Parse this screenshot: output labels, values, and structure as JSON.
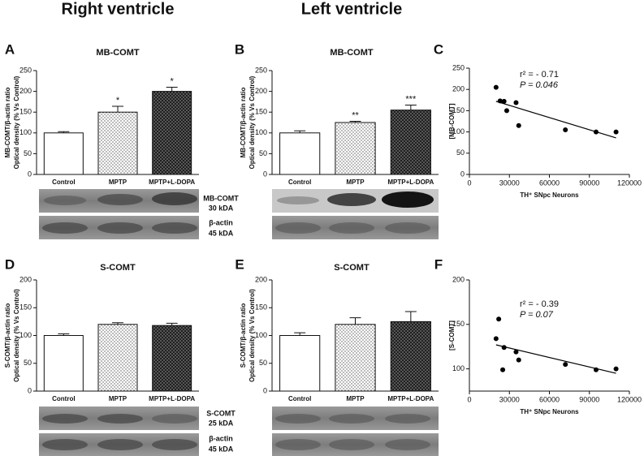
{
  "headers": [
    "Right ventricle",
    "Left ventricle"
  ],
  "blot_labels": {
    "top": [
      "MB-COMT",
      "30 kDA",
      "β-actin",
      "45 kDA"
    ],
    "bottom": [
      "S-COMT",
      "25 kDA",
      "β-actin",
      "45 kDA"
    ]
  },
  "chart_data": [
    {
      "type": "bar",
      "panel": "A",
      "title": "MB-COMT",
      "ylabel": [
        "MB-COMT/β-actin ratio",
        "Optical density (% Vs Control)"
      ],
      "categories": [
        "Control",
        "MPTP",
        "MPTP+L-DOPA"
      ],
      "values": [
        100,
        150,
        200
      ],
      "errors": [
        3,
        14,
        10
      ],
      "annotations": [
        null,
        "*",
        "*"
      ],
      "fills": [
        "white",
        "dots",
        "hatch"
      ],
      "ylim": [
        0,
        250
      ],
      "yticks": [
        0,
        50,
        100,
        150,
        200,
        250
      ]
    },
    {
      "type": "bar",
      "panel": "B",
      "title": "MB-COMT",
      "ylabel": [
        "MB-COMT/β-actin ratio",
        "Optical density (% Vs Control)"
      ],
      "categories": [
        "Control",
        "MPTP",
        "MPTP+L-DOPA"
      ],
      "values": [
        100,
        125,
        155
      ],
      "errors": [
        5,
        3,
        12
      ],
      "annotations": [
        null,
        "**",
        "***"
      ],
      "fills": [
        "white",
        "dots",
        "hatch"
      ],
      "ylim": [
        0,
        250
      ],
      "yticks": [
        0,
        50,
        100,
        150,
        200,
        250
      ]
    },
    {
      "type": "scatter",
      "panel": "C",
      "ylabel": [
        "[MB-COMT]"
      ],
      "xlabel": "TH⁺ SNpc Neurons",
      "annotations": [
        "r² = - 0.71",
        "P = 0.046"
      ],
      "x": [
        20000,
        23000,
        26000,
        28000,
        35000,
        37000,
        72000,
        95000,
        110000
      ],
      "values": [
        205,
        173,
        172,
        150,
        169,
        115,
        105,
        100,
        100
      ],
      "fit": {
        "x": [
          20000,
          110000
        ],
        "y": [
          172,
          86
        ]
      },
      "xlim": [
        0,
        120000
      ],
      "xticks": [
        0,
        30000,
        60000,
        90000,
        120000
      ],
      "ylim": [
        0,
        250
      ],
      "yticks": [
        0,
        50,
        100,
        150,
        200,
        250
      ]
    },
    {
      "type": "bar",
      "panel": "D",
      "title": "S-COMT",
      "ylabel": [
        "S-COMT/β-actin ratio",
        "Optical density (% Vs Control)"
      ],
      "categories": [
        "Control",
        "MPTP",
        "MPTP+L-DOPA"
      ],
      "values": [
        100,
        120,
        118
      ],
      "errors": [
        3,
        3,
        4
      ],
      "annotations": [
        null,
        null,
        null
      ],
      "fills": [
        "white",
        "dots",
        "hatch"
      ],
      "ylim": [
        0,
        200
      ],
      "yticks": [
        0,
        50,
        100,
        150,
        200
      ]
    },
    {
      "type": "bar",
      "panel": "E",
      "title": "S-COMT",
      "ylabel": [
        "S-COMT/β-actin ratio",
        "Optical density (% Vs Control)"
      ],
      "categories": [
        "Control",
        "MPTP",
        "MPTP+L-DOPA"
      ],
      "values": [
        100,
        120,
        125
      ],
      "errors": [
        5,
        12,
        18
      ],
      "annotations": [
        null,
        null,
        null
      ],
      "fills": [
        "white",
        "dots",
        "hatch"
      ],
      "ylim": [
        0,
        200
      ],
      "yticks": [
        0,
        50,
        100,
        150,
        200
      ]
    },
    {
      "type": "scatter",
      "panel": "F",
      "ylabel": [
        "[S-COMT]"
      ],
      "xlabel": "TH⁺ SNpc Neurons",
      "annotations": [
        "r² = - 0.39",
        "P = 0.07"
      ],
      "x": [
        20000,
        22000,
        25000,
        26000,
        35000,
        37000,
        72000,
        95000,
        110000
      ],
      "values": [
        134,
        156,
        99,
        124,
        119,
        110,
        105,
        99,
        100
      ],
      "fit": {
        "x": [
          20000,
          110000
        ],
        "y": [
          127,
          95
        ]
      },
      "xlim": [
        0,
        120000
      ],
      "xticks": [
        0,
        30000,
        60000,
        90000,
        120000
      ],
      "ylim": [
        75,
        200
      ],
      "yticks": [
        100,
        150,
        200
      ]
    }
  ]
}
